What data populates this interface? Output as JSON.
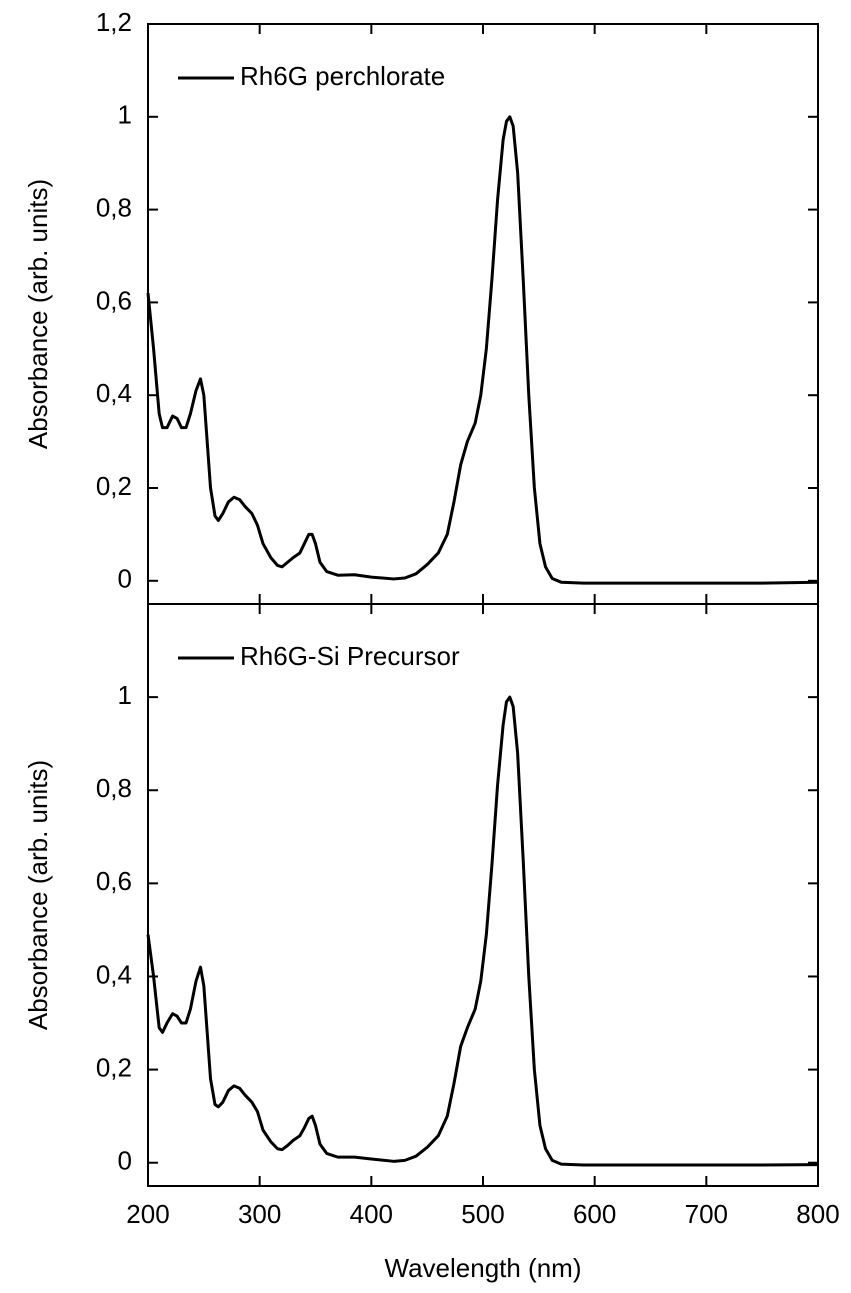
{
  "chart_data": [
    {
      "type": "line",
      "ylabel": "Absorbance (arb. units)",
      "legend": "upper left",
      "x": [
        200,
        205,
        210,
        213,
        217,
        222,
        226,
        230,
        234,
        238,
        243,
        247,
        250,
        253,
        256,
        260,
        263,
        267,
        272,
        277,
        282,
        287,
        293,
        298,
        303,
        310,
        316,
        320,
        325,
        330,
        336,
        340,
        344,
        347,
        350,
        354,
        360,
        370,
        385,
        400,
        420,
        430,
        440,
        450,
        460,
        468,
        474,
        480,
        486,
        493,
        498,
        503,
        508,
        513,
        518,
        521,
        524,
        527,
        531,
        536,
        541,
        546,
        551,
        556,
        562,
        570,
        590,
        650,
        700,
        750,
        800
      ],
      "series": [
        {
          "name": "Rh6G perchlorate",
          "color": "#000000",
          "values": [
            0.62,
            0.5,
            0.36,
            0.33,
            0.33,
            0.355,
            0.35,
            0.33,
            0.33,
            0.36,
            0.41,
            0.435,
            0.4,
            0.3,
            0.2,
            0.14,
            0.13,
            0.145,
            0.17,
            0.18,
            0.175,
            0.16,
            0.145,
            0.12,
            0.08,
            0.05,
            0.033,
            0.03,
            0.04,
            0.05,
            0.06,
            0.08,
            0.1,
            0.1,
            0.08,
            0.04,
            0.02,
            0.012,
            0.013,
            0.008,
            0.004,
            0.006,
            0.015,
            0.035,
            0.06,
            0.1,
            0.17,
            0.25,
            0.3,
            0.34,
            0.4,
            0.5,
            0.65,
            0.82,
            0.95,
            0.99,
            1.0,
            0.98,
            0.88,
            0.65,
            0.4,
            0.2,
            0.08,
            0.03,
            0.005,
            -0.003,
            -0.005,
            -0.005,
            -0.005,
            -0.005,
            -0.003
          ]
        }
      ],
      "ylim": [
        -0.05,
        1.2
      ],
      "yticks": [
        0,
        {
          "value": 0.2,
          "label": "0,2"
        },
        {
          "value": 0.4,
          "label": "0,4"
        },
        {
          "value": 0.6,
          "label": "0,6"
        },
        {
          "value": 0.8,
          "label": "0,8"
        },
        1,
        {
          "value": 1.2,
          "label": "1,2"
        }
      ]
    },
    {
      "type": "line",
      "ylabel": "Absorbance (arb. units)",
      "xlabel": "Wavelength (nm)",
      "legend": "upper left",
      "x": [
        200,
        205,
        210,
        213,
        217,
        222,
        226,
        230,
        234,
        238,
        243,
        247,
        250,
        253,
        256,
        260,
        263,
        267,
        272,
        277,
        282,
        287,
        293,
        298,
        303,
        310,
        316,
        320,
        325,
        330,
        336,
        340,
        344,
        347,
        350,
        354,
        360,
        370,
        385,
        400,
        420,
        430,
        440,
        450,
        460,
        468,
        474,
        480,
        486,
        493,
        498,
        503,
        508,
        513,
        518,
        521,
        524,
        527,
        531,
        536,
        541,
        546,
        551,
        556,
        562,
        570,
        590,
        650,
        700,
        750,
        800
      ],
      "series": [
        {
          "name": "Rh6G-Si Precursor",
          "color": "#000000",
          "values": [
            0.49,
            0.4,
            0.29,
            0.28,
            0.3,
            0.32,
            0.315,
            0.3,
            0.3,
            0.33,
            0.39,
            0.42,
            0.38,
            0.28,
            0.18,
            0.125,
            0.12,
            0.13,
            0.155,
            0.165,
            0.16,
            0.145,
            0.13,
            0.11,
            0.07,
            0.045,
            0.03,
            0.028,
            0.037,
            0.048,
            0.058,
            0.075,
            0.095,
            0.1,
            0.08,
            0.04,
            0.02,
            0.012,
            0.012,
            0.008,
            0.003,
            0.005,
            0.014,
            0.033,
            0.058,
            0.1,
            0.17,
            0.25,
            0.29,
            0.33,
            0.39,
            0.49,
            0.64,
            0.81,
            0.94,
            0.99,
            1.0,
            0.98,
            0.88,
            0.65,
            0.4,
            0.2,
            0.08,
            0.03,
            0.005,
            -0.003,
            -0.005,
            -0.005,
            -0.005,
            -0.005,
            -0.004
          ]
        }
      ],
      "xlim": [
        200,
        800
      ],
      "xticks": [
        200,
        300,
        400,
        500,
        600,
        700,
        800
      ],
      "ylim": [
        -0.05,
        1.2
      ],
      "yticks": [
        0,
        {
          "value": 0.2,
          "label": "0,2"
        },
        {
          "value": 0.4,
          "label": "0,4"
        },
        {
          "value": 0.6,
          "label": "0,6"
        },
        {
          "value": 0.8,
          "label": "0,8"
        },
        1
      ]
    }
  ]
}
